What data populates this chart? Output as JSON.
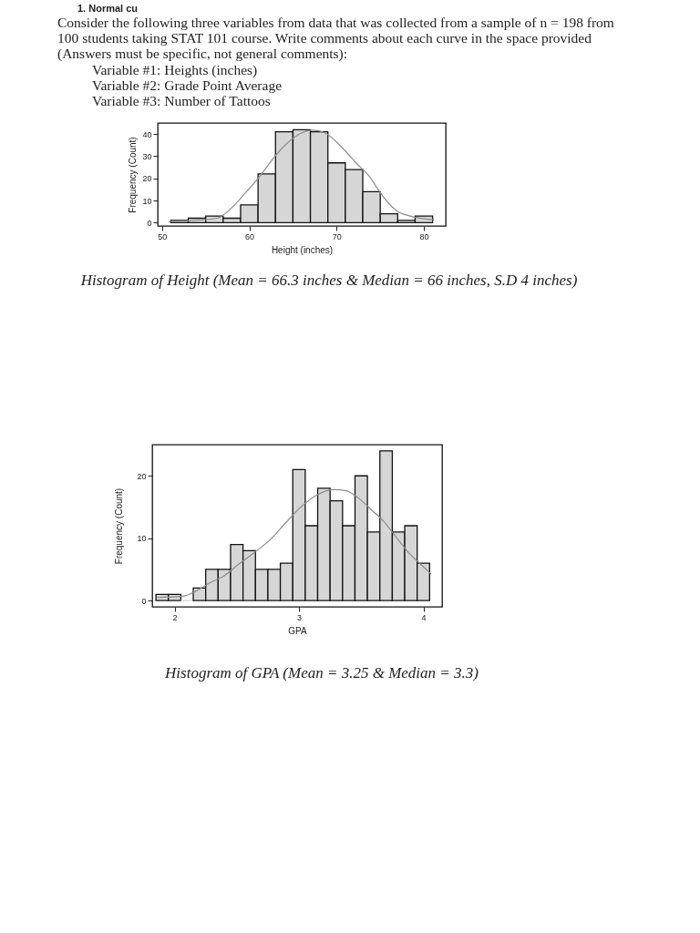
{
  "chart_data": [
    {
      "type": "other",
      "annotations": [
        "1. Normal cu",
        "Consider the following three variables from data that was collected from a sample of n = 198 from",
        "100 students taking STAT 101 course. Write comments about each curve in the space provided",
        "(Answers must be specific, not general comments):",
        "Variable #1: Heights (inches)",
        "Variable #2: Grade Point Average",
        "Variable #3: Number of Tattoos"
      ]
    },
    {
      "type": "histogram",
      "title": "Histogram of Height (Mean = 66.3 inches & Median = 66 inches, S.D 4 inches)",
      "xlabel": "Height (inches)",
      "ylabel": "Frequency (Count)",
      "bins": [
        51,
        53,
        55,
        57,
        59,
        61,
        63,
        65,
        67,
        69,
        71,
        73,
        75,
        77,
        79,
        81
      ],
      "series": [
        {
          "type": "histogram",
          "color": "#d6d6d6",
          "values": [
            1,
            2,
            3,
            2,
            8,
            22,
            41,
            42,
            41,
            27,
            24,
            14,
            4,
            1,
            3
          ]
        },
        {
          "type": "line",
          "color": "#8c8c8c",
          "x": [
            50.8,
            56.3,
            58.0,
            59.3,
            61.25,
            62.7,
            64.1,
            65.9,
            67.3,
            68.75,
            70.7,
            72.3,
            73.8,
            74.8,
            75.9,
            76.9,
            78.4,
            81.1
          ],
          "values": [
            0.4,
            2.0,
            6.8,
            12.3,
            21.2,
            28.8,
            35.0,
            40.4,
            41.8,
            40.4,
            33.6,
            26.7,
            20.7,
            14.7,
            9.0,
            5.3,
            3.0,
            1.3
          ]
        }
      ],
      "xlim": [
        49.5,
        82.5
      ],
      "ylim": [
        -1.5,
        45
      ],
      "xticks": [
        50,
        60,
        70,
        80
      ],
      "yticks": [
        0,
        10,
        20,
        30,
        40
      ]
    },
    {
      "type": "histogram",
      "title": "Histogram of GPA (Mean = 3.25 & Median = 3.3)",
      "xlabel": "GPA",
      "ylabel": "Frequency (Count)",
      "bins": [
        1.85,
        1.95,
        2.05,
        2.15,
        2.25,
        2.35,
        2.45,
        2.55,
        2.65,
        2.75,
        2.85,
        2.95,
        3.05,
        3.15,
        3.25,
        3.35,
        3.45,
        3.55,
        3.65,
        3.75,
        3.85,
        3.95,
        4.05
      ],
      "series": [
        {
          "type": "histogram",
          "color": "#d6d6d6",
          "values": [
            1,
            1,
            0,
            2,
            5,
            5,
            9,
            8,
            5,
            5,
            6,
            21,
            12,
            18,
            16,
            12,
            20,
            11,
            24,
            11,
            12,
            6
          ]
        },
        {
          "type": "line",
          "color": "#8c8c8c",
          "x": [
            1.86,
            2.07,
            2.17,
            2.27,
            2.4,
            2.52,
            2.64,
            2.77,
            2.89,
            3.01,
            3.14,
            3.28,
            3.38,
            3.48,
            3.58,
            3.68,
            3.78,
            3.88,
            3.98,
            4.06
          ],
          "values": [
            0.5,
            0.7,
            1.5,
            2.7,
            4.0,
            5.9,
            7.7,
            9.8,
            12.4,
            14.9,
            16.9,
            17.8,
            17.6,
            16.4,
            14.6,
            12.7,
            10.2,
            7.7,
            5.8,
            4.3
          ]
        }
      ],
      "xlim": [
        1.82,
        4.15
      ],
      "ylim": [
        -1,
        25
      ],
      "xticks": [
        2,
        3,
        4
      ],
      "yticks": [
        0,
        10,
        20
      ]
    }
  ]
}
